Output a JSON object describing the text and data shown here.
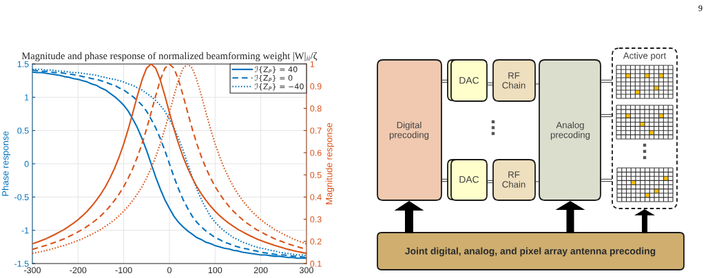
{
  "chart_data": [
    {
      "type": "line",
      "title": "Magnitude and phase response of normalized beamforming weight |W|$_{ii}$/ζ",
      "ylabel": "Phase response",
      "y2label": "Magnitude response",
      "x": [
        -300,
        -290,
        -280,
        -270,
        -260,
        -250,
        -240,
        -230,
        -220,
        -210,
        -200,
        -190,
        -180,
        -170,
        -160,
        -150,
        -140,
        -130,
        -120,
        -110,
        -100,
        -90,
        -80,
        -70,
        -60,
        -50,
        -40,
        -30,
        -20,
        -10,
        0,
        10,
        20,
        30,
        40,
        50,
        60,
        70,
        80,
        90,
        100,
        110,
        120,
        130,
        140,
        150,
        160,
        170,
        180,
        190,
        200,
        210,
        220,
        230,
        240,
        250,
        260,
        270,
        280,
        290,
        300
      ],
      "series": [
        {
          "name": "ℐ{Z$_{P}$} = 40",
          "color": "#0072bd",
          "line_style": "solid",
          "values": [
            1.38,
            1.37,
            1.37,
            1.36,
            1.35,
            1.34,
            1.33,
            1.31,
            1.3,
            1.28,
            1.27,
            1.25,
            1.23,
            1.2,
            1.18,
            1.14,
            1.11,
            1.06,
            1.01,
            0.95,
            0.88,
            0.79,
            0.67,
            0.54,
            0.38,
            0.2,
            0,
            -0.2,
            -0.38,
            -0.54,
            -0.67,
            -0.79,
            -0.88,
            -0.95,
            -1.01,
            -1.06,
            -1.11,
            -1.14,
            -1.18,
            -1.2,
            -1.23,
            -1.25,
            -1.27,
            -1.28,
            -1.3,
            -1.31,
            -1.33,
            -1.34,
            -1.35,
            -1.36,
            -1.37,
            -1.37,
            -1.38,
            -1.39,
            -1.39,
            -1.4,
            -1.41,
            -1.41,
            -1.42,
            -1.42,
            -1.42
          ]
        },
        {
          "name": "ℐ{Z$_{P}$} = 0",
          "color": "#0072bd",
          "line_style": "dashed",
          "values": [
            1.41,
            1.4,
            1.39,
            1.39,
            1.38,
            1.37,
            1.37,
            1.36,
            1.35,
            1.34,
            1.33,
            1.31,
            1.3,
            1.28,
            1.27,
            1.25,
            1.23,
            1.2,
            1.18,
            1.14,
            1.11,
            1.06,
            1.01,
            0.95,
            0.88,
            0.79,
            0.67,
            0.54,
            0.38,
            0.2,
            0,
            -0.2,
            -0.38,
            -0.54,
            -0.67,
            -0.79,
            -0.88,
            -0.95,
            -1.01,
            -1.06,
            -1.11,
            -1.14,
            -1.18,
            -1.2,
            -1.23,
            -1.25,
            -1.27,
            -1.28,
            -1.3,
            -1.31,
            -1.33,
            -1.34,
            -1.35,
            -1.36,
            -1.37,
            -1.37,
            -1.38,
            -1.39,
            -1.39,
            -1.4,
            -1.41
          ]
        },
        {
          "name": "ℐ{Z$_{P}$} = −40",
          "color": "#0072bd",
          "line_style": "dotted",
          "values": [
            1.42,
            1.42,
            1.42,
            1.41,
            1.41,
            1.4,
            1.39,
            1.39,
            1.38,
            1.37,
            1.37,
            1.36,
            1.35,
            1.34,
            1.33,
            1.31,
            1.3,
            1.28,
            1.27,
            1.25,
            1.23,
            1.2,
            1.18,
            1.14,
            1.11,
            1.06,
            1.01,
            0.95,
            0.88,
            0.79,
            0.67,
            0.54,
            0.38,
            0.2,
            0,
            -0.2,
            -0.38,
            -0.54,
            -0.67,
            -0.79,
            -0.88,
            -0.95,
            -1.01,
            -1.06,
            -1.11,
            -1.14,
            -1.18,
            -1.2,
            -1.23,
            -1.25,
            -1.27,
            -1.28,
            -1.3,
            -1.31,
            -1.33,
            -1.34,
            -1.35,
            -1.36,
            -1.37,
            -1.37,
            -1.38
          ]
        },
        {
          "color": "#d95319",
          "line_style": "solid",
          "axis": "y2",
          "values": [
            0.189,
            0.196,
            0.204,
            0.212,
            0.222,
            0.232,
            0.243,
            0.254,
            0.268,
            0.282,
            0.298,
            0.316,
            0.336,
            0.359,
            0.385,
            0.414,
            0.447,
            0.486,
            0.53,
            0.581,
            0.64,
            0.707,
            0.781,
            0.857,
            0.928,
            0.981,
            1,
            0.981,
            0.928,
            0.857,
            0.781,
            0.707,
            0.64,
            0.581,
            0.53,
            0.486,
            0.447,
            0.414,
            0.385,
            0.359,
            0.336,
            0.316,
            0.298,
            0.282,
            0.268,
            0.254,
            0.243,
            0.232,
            0.222,
            0.212,
            0.204,
            0.196,
            0.189,
            0.182,
            0.176,
            0.17,
            0.164,
            0.159,
            0.154,
            0.15,
            0.146
          ]
        },
        {
          "color": "#d95319",
          "line_style": "dashed",
          "axis": "y2",
          "values": [
            0.164,
            0.17,
            0.176,
            0.182,
            0.189,
            0.196,
            0.204,
            0.212,
            0.222,
            0.232,
            0.243,
            0.254,
            0.268,
            0.282,
            0.298,
            0.316,
            0.336,
            0.359,
            0.385,
            0.414,
            0.447,
            0.486,
            0.53,
            0.581,
            0.64,
            0.707,
            0.781,
            0.857,
            0.928,
            0.981,
            1,
            0.981,
            0.928,
            0.857,
            0.781,
            0.707,
            0.64,
            0.581,
            0.53,
            0.486,
            0.447,
            0.414,
            0.385,
            0.359,
            0.336,
            0.316,
            0.298,
            0.282,
            0.268,
            0.254,
            0.243,
            0.232,
            0.222,
            0.212,
            0.204,
            0.196,
            0.189,
            0.182,
            0.176,
            0.17,
            0.164
          ]
        },
        {
          "color": "#d95319",
          "line_style": "dotted",
          "axis": "y2",
          "values": [
            0.146,
            0.15,
            0.154,
            0.159,
            0.164,
            0.17,
            0.176,
            0.182,
            0.189,
            0.196,
            0.204,
            0.212,
            0.222,
            0.232,
            0.243,
            0.254,
            0.268,
            0.282,
            0.298,
            0.316,
            0.336,
            0.359,
            0.385,
            0.414,
            0.447,
            0.486,
            0.53,
            0.581,
            0.64,
            0.707,
            0.781,
            0.857,
            0.928,
            0.981,
            1,
            0.981,
            0.928,
            0.857,
            0.781,
            0.707,
            0.64,
            0.581,
            0.53,
            0.486,
            0.447,
            0.414,
            0.385,
            0.359,
            0.336,
            0.316,
            0.298,
            0.282,
            0.268,
            0.254,
            0.243,
            0.232,
            0.222,
            0.212,
            0.204,
            0.196,
            0.189
          ]
        }
      ],
      "xlim": [
        -300,
        300
      ],
      "xticks": [
        -300,
        -200,
        -100,
        0,
        100,
        200,
        300
      ],
      "ylim": [
        -1.5,
        1.5
      ],
      "yticks": [
        -1.5,
        -1,
        -0.5,
        0,
        0.5,
        1,
        1.5
      ],
      "y2lim": [
        0.1,
        1
      ],
      "y2ticks": [
        0.1,
        0.2,
        0.3,
        0.4,
        0.5,
        0.6,
        0.7,
        0.8,
        0.9,
        1
      ],
      "grid": true,
      "legend": "top right"
    },
    {
      "type": "other",
      "annotations": [
        "Digital\nprecoding",
        "DAC",
        "DAC",
        "RF\nChain",
        "RF\nChain",
        "Analog\nprecoding",
        "Active port",
        "Joint digital, analog, and pixel array antenna precoding",
        "9"
      ]
    }
  ]
}
